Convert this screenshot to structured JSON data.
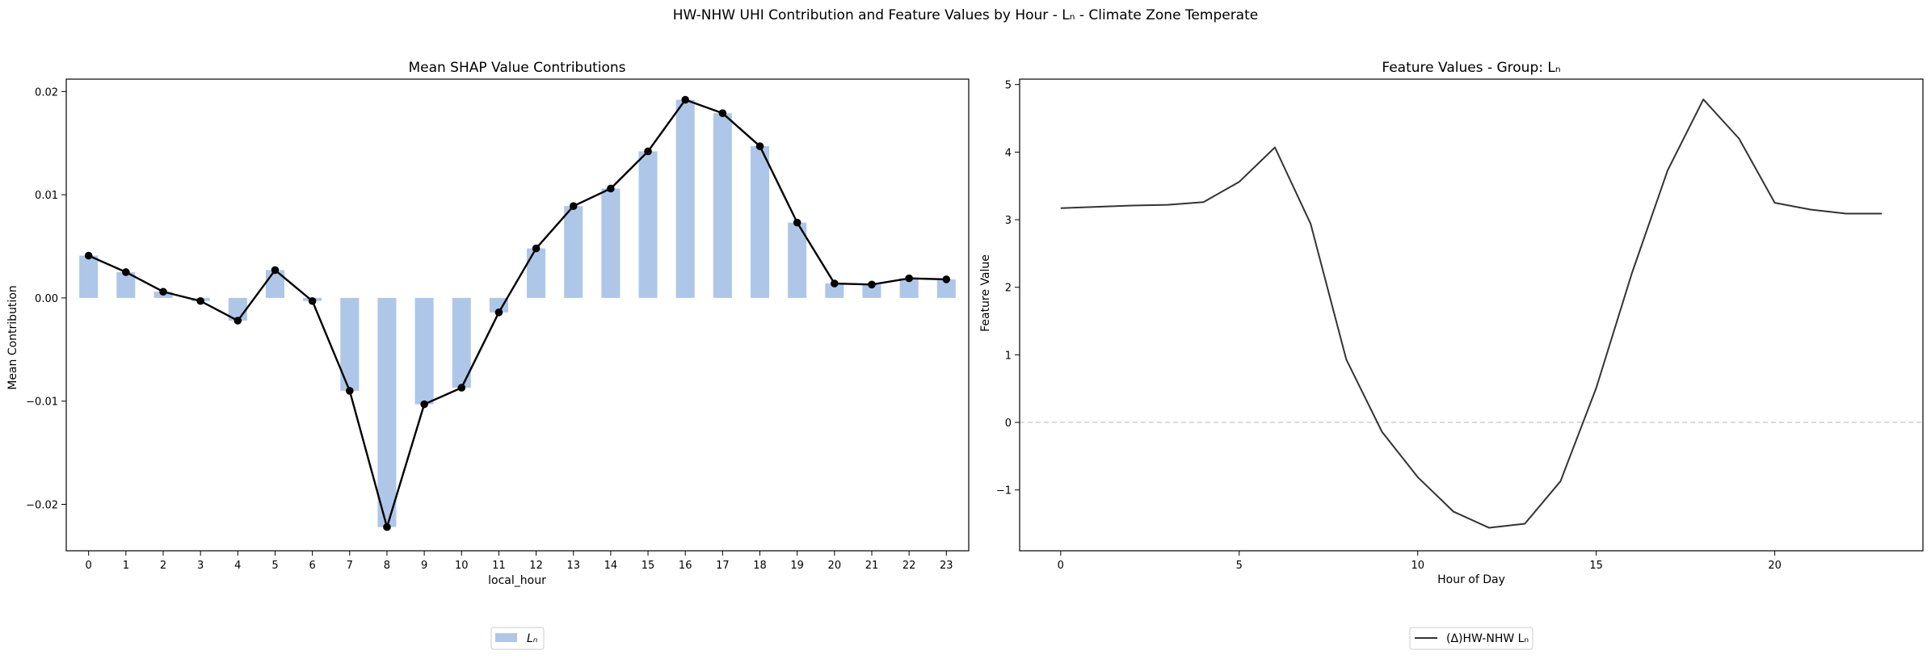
{
  "figure": {
    "suptitle": "HW-NHW UHI Contribution and Feature Values by Hour - Lₙ - Climate Zone Temperate"
  },
  "chart_data": [
    {
      "type": "bar",
      "title": "Mean SHAP Value Contributions",
      "xlabel": "local_hour",
      "ylabel": "Mean Contribution",
      "categories": [
        "0",
        "1",
        "2",
        "3",
        "4",
        "5",
        "6",
        "7",
        "8",
        "9",
        "10",
        "11",
        "12",
        "13",
        "14",
        "15",
        "16",
        "17",
        "18",
        "19",
        "20",
        "21",
        "22",
        "23"
      ],
      "series": [
        {
          "name": "Lₙ",
          "color": "#aec7e8",
          "values": [
            0.0041,
            0.0025,
            0.0006,
            -0.0003,
            -0.0022,
            0.0027,
            -0.0003,
            -0.009,
            -0.0222,
            -0.0103,
            -0.0087,
            -0.0014,
            0.0048,
            0.0089,
            0.0106,
            0.0142,
            0.0192,
            0.0179,
            0.0147,
            0.0073,
            0.0014,
            0.0013,
            0.0019,
            0.0018
          ]
        }
      ],
      "overlay_line": {
        "color": "#000000",
        "marker": "circle"
      },
      "ylim": [
        -0.0245,
        0.0212
      ],
      "yticks": [
        -0.02,
        -0.01,
        0.0,
        0.01,
        0.02
      ],
      "ytick_labels": [
        "−0.02",
        "−0.01",
        "0.00",
        "0.01",
        "0.02"
      ],
      "legend": {
        "placement": "bottom-center",
        "entries": [
          "Lₙ"
        ]
      },
      "grid": false
    },
    {
      "type": "line",
      "title": "Feature Values - Group: Lₙ",
      "xlabel": "Hour of Day",
      "ylabel": "Feature Value",
      "x": [
        0,
        1,
        2,
        3,
        4,
        5,
        6,
        7,
        8,
        9,
        10,
        11,
        12,
        13,
        14,
        15,
        16,
        17,
        18,
        19,
        20,
        21,
        22,
        23
      ],
      "series": [
        {
          "name": "(Δ)HW-NHW Lₙ",
          "color": "#333333",
          "values": [
            3.17,
            3.19,
            3.21,
            3.22,
            3.26,
            3.56,
            4.07,
            2.94,
            0.93,
            -0.14,
            -0.81,
            -1.32,
            -1.56,
            -1.5,
            -0.87,
            0.51,
            2.21,
            3.73,
            4.78,
            4.2,
            3.25,
            3.15,
            3.09,
            3.09
          ]
        }
      ],
      "xlim": [
        -1.15,
        24.15
      ],
      "ylim": [
        -1.9,
        5.08
      ],
      "xticks": [
        0,
        5,
        10,
        15,
        20
      ],
      "xtick_labels": [
        "0",
        "5",
        "10",
        "15",
        "20"
      ],
      "yticks": [
        -1,
        0,
        1,
        2,
        3,
        4,
        5
      ],
      "ytick_labels": [
        "−1",
        "0",
        "1",
        "2",
        "3",
        "4",
        "5"
      ],
      "zero_line": {
        "style": "dashed",
        "color": "#c8c8c8"
      },
      "legend": {
        "placement": "bottom-center",
        "entries": [
          "(Δ)HW-NHW Lₙ"
        ]
      },
      "grid": false
    }
  ]
}
